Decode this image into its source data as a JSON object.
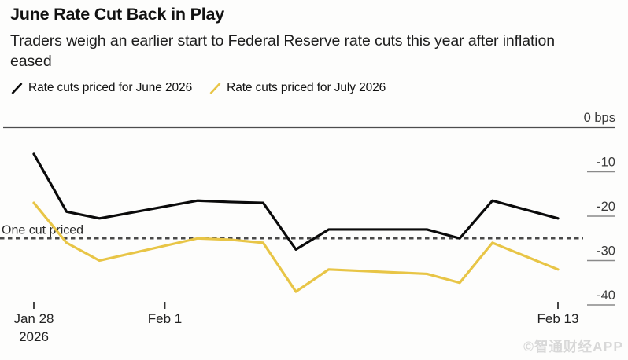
{
  "header": {
    "title": "June Rate Cut Back in Play",
    "subtitle": "Traders weigh an earlier start to Federal Reserve rate cuts this year after inflation eased"
  },
  "legend": [
    {
      "label": "Rate cuts priced for June 2026",
      "color": "#0a0a0a"
    },
    {
      "label": "Rate cuts priced for July 2026",
      "color": "#e8c546"
    }
  ],
  "watermark": "©智通财经APP",
  "colors": {
    "june_series": "#0a0a0a",
    "july_series": "#e8c546",
    "axis_line": "#4d4d4d",
    "tick_stub": "#8a8a8a",
    "reference_line": "#4a4a4a"
  },
  "chart_data": {
    "type": "line",
    "title": "June Rate Cut Back in Play",
    "subtitle": "Traders weigh an earlier start to Federal Reserve rate cuts this year after inflation eased",
    "unit": "bps",
    "ylim": [
      -45,
      0
    ],
    "grid": false,
    "legend_position": "top",
    "y_ticks": [
      {
        "label": "0 bps",
        "value": 0
      },
      {
        "label": "-10",
        "value": -10
      },
      {
        "label": "-20",
        "value": -20
      },
      {
        "label": "-30",
        "value": -30
      },
      {
        "label": "-40",
        "value": -40
      }
    ],
    "x_ticks": [
      {
        "label": "Jan 28",
        "sublabel": "2026",
        "day": 0
      },
      {
        "label": "Feb 1",
        "sublabel": "",
        "day": 4
      },
      {
        "label": "Feb 13",
        "sublabel": "",
        "day": 16
      }
    ],
    "x_range_days": [
      0,
      16
    ],
    "reference_line": {
      "label": "One cut priced",
      "value": -25,
      "style": "dashed"
    },
    "series": [
      {
        "name": "Rate cuts priced for June 2026",
        "color": "#0a0a0a",
        "points": [
          {
            "date": "Jan 28",
            "day": 0,
            "bps": -6
          },
          {
            "date": "Jan 29",
            "day": 1,
            "bps": -19
          },
          {
            "date": "Jan 30",
            "day": 2,
            "bps": -20.5
          },
          {
            "date": "Feb 2",
            "day": 5,
            "bps": -16.5
          },
          {
            "date": "Feb 3",
            "day": 6,
            "bps": -16.8
          },
          {
            "date": "Feb 4",
            "day": 7,
            "bps": -17
          },
          {
            "date": "Feb 5",
            "day": 8,
            "bps": -27.5
          },
          {
            "date": "Feb 6",
            "day": 9,
            "bps": -23
          },
          {
            "date": "Feb 9",
            "day": 12,
            "bps": -23
          },
          {
            "date": "Feb 10",
            "day": 13,
            "bps": -25
          },
          {
            "date": "Feb 11",
            "day": 14,
            "bps": -16.5
          },
          {
            "date": "Feb 12",
            "day": 15,
            "bps": -18.5
          },
          {
            "date": "Feb 13",
            "day": 16,
            "bps": -20.5
          }
        ]
      },
      {
        "name": "Rate cuts priced for July 2026",
        "color": "#e8c546",
        "points": [
          {
            "date": "Jan 28",
            "day": 0,
            "bps": -17
          },
          {
            "date": "Jan 29",
            "day": 1,
            "bps": -26
          },
          {
            "date": "Jan 30",
            "day": 2,
            "bps": -30
          },
          {
            "date": "Feb 2",
            "day": 5,
            "bps": -25
          },
          {
            "date": "Feb 3",
            "day": 6,
            "bps": -25.3
          },
          {
            "date": "Feb 4",
            "day": 7,
            "bps": -26
          },
          {
            "date": "Feb 5",
            "day": 8,
            "bps": -37
          },
          {
            "date": "Feb 6",
            "day": 9,
            "bps": -32
          },
          {
            "date": "Feb 9",
            "day": 12,
            "bps": -33
          },
          {
            "date": "Feb 10",
            "day": 13,
            "bps": -35
          },
          {
            "date": "Feb 11",
            "day": 14,
            "bps": -26
          },
          {
            "date": "Feb 12",
            "day": 15,
            "bps": -29
          },
          {
            "date": "Feb 13",
            "day": 16,
            "bps": -32
          }
        ]
      }
    ]
  }
}
